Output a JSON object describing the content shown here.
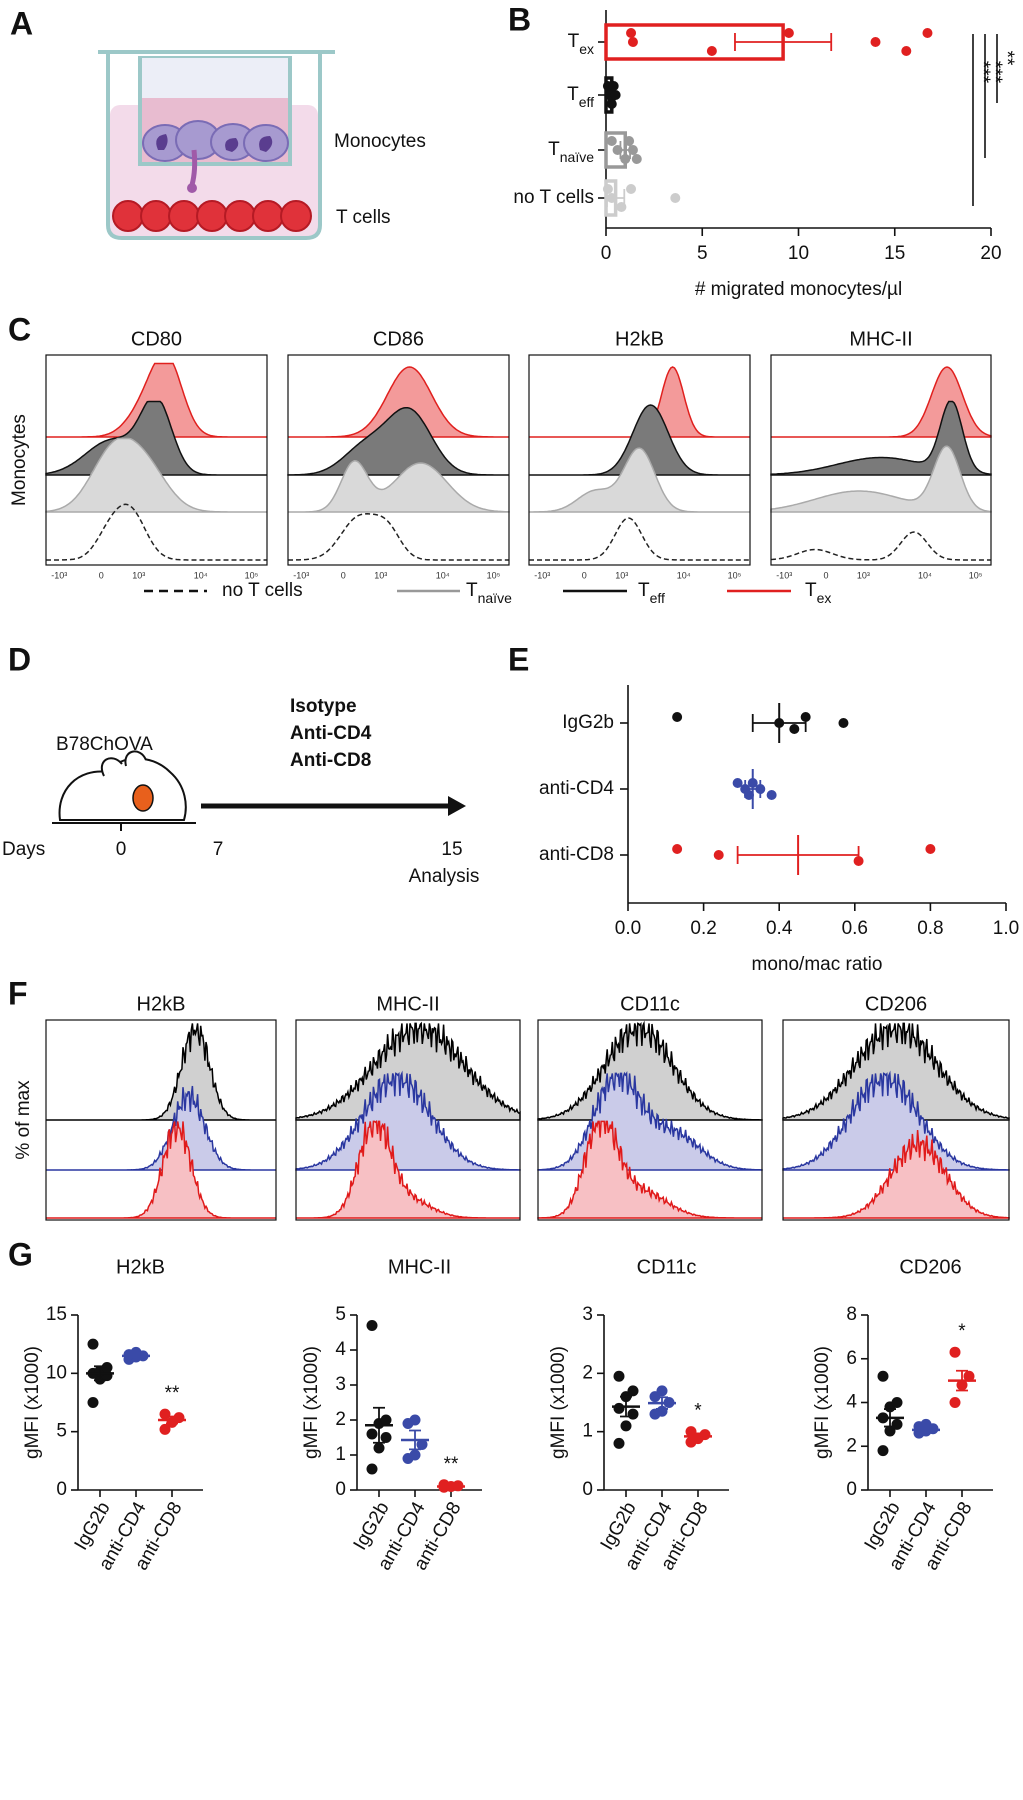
{
  "panel_labels": [
    "A",
    "B",
    "C",
    "D",
    "E",
    "F",
    "G"
  ],
  "panel_a": {
    "labels": [
      "Monocytes",
      "T cells"
    ]
  },
  "panel_c": {
    "titles": [
      "CD80",
      "CD86",
      "H2kB",
      "MHC-II"
    ],
    "y_label": "Monocytes",
    "x_tick_labels": [
      "-10³",
      "0",
      "10³",
      "10⁴",
      "10⁵"
    ],
    "legend": [
      {
        "label": "no T cells"
      },
      {
        "label": "T",
        "subscript": "naïve"
      },
      {
        "label": "T",
        "subscript": "eff"
      },
      {
        "label": "T",
        "subscript": "ex"
      }
    ]
  },
  "panel_d": {
    "tumor": "B78ChOVA",
    "treatments": [
      "Isotype",
      "Anti-CD4",
      "Anti-CD8"
    ],
    "treatment_colors": [
      "#111111",
      "#3a4aa8",
      "#e02020"
    ],
    "axis_label": "Days",
    "days": [
      0,
      7,
      15
    ],
    "end_label": "Analysis"
  },
  "panel_f": {
    "titles": [
      "H2kB",
      "MHC-II",
      "CD11c",
      "CD206"
    ],
    "y_label": "% of max"
  },
  "chart_data": [
    {
      "type": "bar",
      "orientation": "horizontal",
      "categories": [
        {
          "label": "T",
          "subscript": "ex"
        },
        {
          "label": "T",
          "subscript": "eff"
        },
        {
          "label": "T",
          "subscript": "naïve"
        },
        {
          "label": "no T cells"
        }
      ],
      "colors": [
        "#e02020",
        "#111111",
        "#999999",
        "#cccccc"
      ],
      "values": [
        9.2,
        0.3,
        1.0,
        0.5
      ],
      "errors": [
        2.5,
        0.15,
        0.25,
        0.45
      ],
      "points": [
        [
          1.3,
          1.4,
          5.5,
          9.5,
          14,
          15.6,
          16.7
        ],
        [
          0.1,
          0.2,
          0.3,
          0.4,
          0.5
        ],
        [
          0.3,
          0.6,
          1.0,
          1.2,
          1.4,
          1.6
        ],
        [
          0.1,
          0.3,
          0.8,
          1.3,
          3.6
        ]
      ],
      "xlim": [
        0,
        20
      ],
      "xticks": [
        0,
        5,
        10,
        15,
        20
      ],
      "xlabel": "# migrated monocytes/µl",
      "significance": [
        "**",
        "***",
        "***"
      ]
    },
    {
      "type": "dot",
      "orientation": "horizontal",
      "categories": [
        "IgG2b",
        "anti-CD4",
        "anti-CD8"
      ],
      "colors": [
        "#111111",
        "#3a4aa8",
        "#e02020"
      ],
      "values": [
        0.4,
        0.33,
        0.45
      ],
      "errors": [
        0.07,
        0.02,
        0.16
      ],
      "points": [
        [
          0.13,
          0.4,
          0.44,
          0.47,
          0.57
        ],
        [
          0.29,
          0.31,
          0.32,
          0.33,
          0.35,
          0.38
        ],
        [
          0.13,
          0.24,
          0.61,
          0.8
        ]
      ],
      "xlim": [
        0,
        1
      ],
      "xticks": [
        {
          "value": 0,
          "label": "0.0"
        },
        0.2,
        0.4,
        0.6,
        0.8,
        {
          "value": 1,
          "label": "1.0"
        }
      ],
      "xlabel": "mono/mac ratio"
    },
    {
      "type": "dot",
      "orientation": "vertical",
      "title": "H2kB",
      "ylabel": "gMFI (x1000)",
      "categories": [
        "IgG2b",
        "anti-CD4",
        "anti-CD8"
      ],
      "colors": [
        "#111111",
        "#3a4aa8",
        "#e02020"
      ],
      "values": [
        10,
        11.5,
        6
      ],
      "errors": [
        0.6,
        0.1,
        0.3
      ],
      "points": [
        [
          7.5,
          9.5,
          9.8,
          10,
          10.2,
          10.5,
          12.5
        ],
        [
          11.2,
          11.4,
          11.5,
          11.6,
          11.8
        ],
        [
          5.2,
          5.8,
          6.2,
          6.5
        ]
      ],
      "ylim": [
        0,
        15
      ],
      "yticks": [
        0,
        5,
        10,
        15
      ],
      "significance": {
        "category": "anti-CD8",
        "text": "**"
      }
    },
    {
      "type": "dot",
      "orientation": "vertical",
      "title": "MHC-II",
      "ylabel": "gMFI (x1000)",
      "categories": [
        "IgG2b",
        "anti-CD4",
        "anti-CD8"
      ],
      "colors": [
        "#111111",
        "#3a4aa8",
        "#e02020"
      ],
      "values": [
        1.85,
        1.43,
        0.1
      ],
      "errors": [
        0.5,
        0.27,
        0.02
      ],
      "points": [
        [
          0.6,
          1.2,
          1.5,
          1.6,
          1.9,
          2.0,
          4.7
        ],
        [
          0.9,
          1.0,
          1.3,
          1.9,
          2.0
        ],
        [
          0.08,
          0.1,
          0.12,
          0.15
        ]
      ],
      "ylim": [
        0,
        5
      ],
      "yticks": [
        0,
        1,
        2,
        3,
        4,
        5
      ],
      "significance": {
        "category": "anti-CD8",
        "text": "**"
      }
    },
    {
      "type": "dot",
      "orientation": "vertical",
      "title": "CD11c",
      "ylabel": "gMFI (x1000)",
      "categories": [
        "IgG2b",
        "anti-CD4",
        "anti-CD8"
      ],
      "colors": [
        "#111111",
        "#3a4aa8",
        "#e02020"
      ],
      "values": [
        1.43,
        1.49,
        0.92
      ],
      "errors": [
        0.17,
        0.1,
        0.05
      ],
      "points": [
        [
          0.8,
          1.1,
          1.3,
          1.4,
          1.6,
          1.7,
          1.95
        ],
        [
          1.3,
          1.35,
          1.5,
          1.6,
          1.7
        ],
        [
          0.82,
          0.88,
          0.95,
          1.0
        ]
      ],
      "ylim": [
        0,
        3
      ],
      "yticks": [
        0,
        1,
        2,
        3
      ],
      "significance": {
        "category": "anti-CD8",
        "text": "*"
      }
    },
    {
      "type": "dot",
      "orientation": "vertical",
      "title": "CD206",
      "ylabel": "gMFI (x1000)",
      "categories": [
        "IgG2b",
        "anti-CD4",
        "anti-CD8"
      ],
      "colors": [
        "#111111",
        "#3a4aa8",
        "#e02020"
      ],
      "values": [
        3.3,
        2.75,
        5.0
      ],
      "errors": [
        0.4,
        0.1,
        0.45
      ],
      "points": [
        [
          1.8,
          2.7,
          3.0,
          3.3,
          3.8,
          4.0,
          5.2
        ],
        [
          2.6,
          2.7,
          2.8,
          2.9,
          3.0
        ],
        [
          4.0,
          4.8,
          5.2,
          6.3
        ]
      ],
      "ylim": [
        0,
        8
      ],
      "yticks": [
        0,
        2,
        4,
        6,
        8
      ],
      "significance": {
        "category": "anti-CD8",
        "text": "*"
      }
    }
  ]
}
